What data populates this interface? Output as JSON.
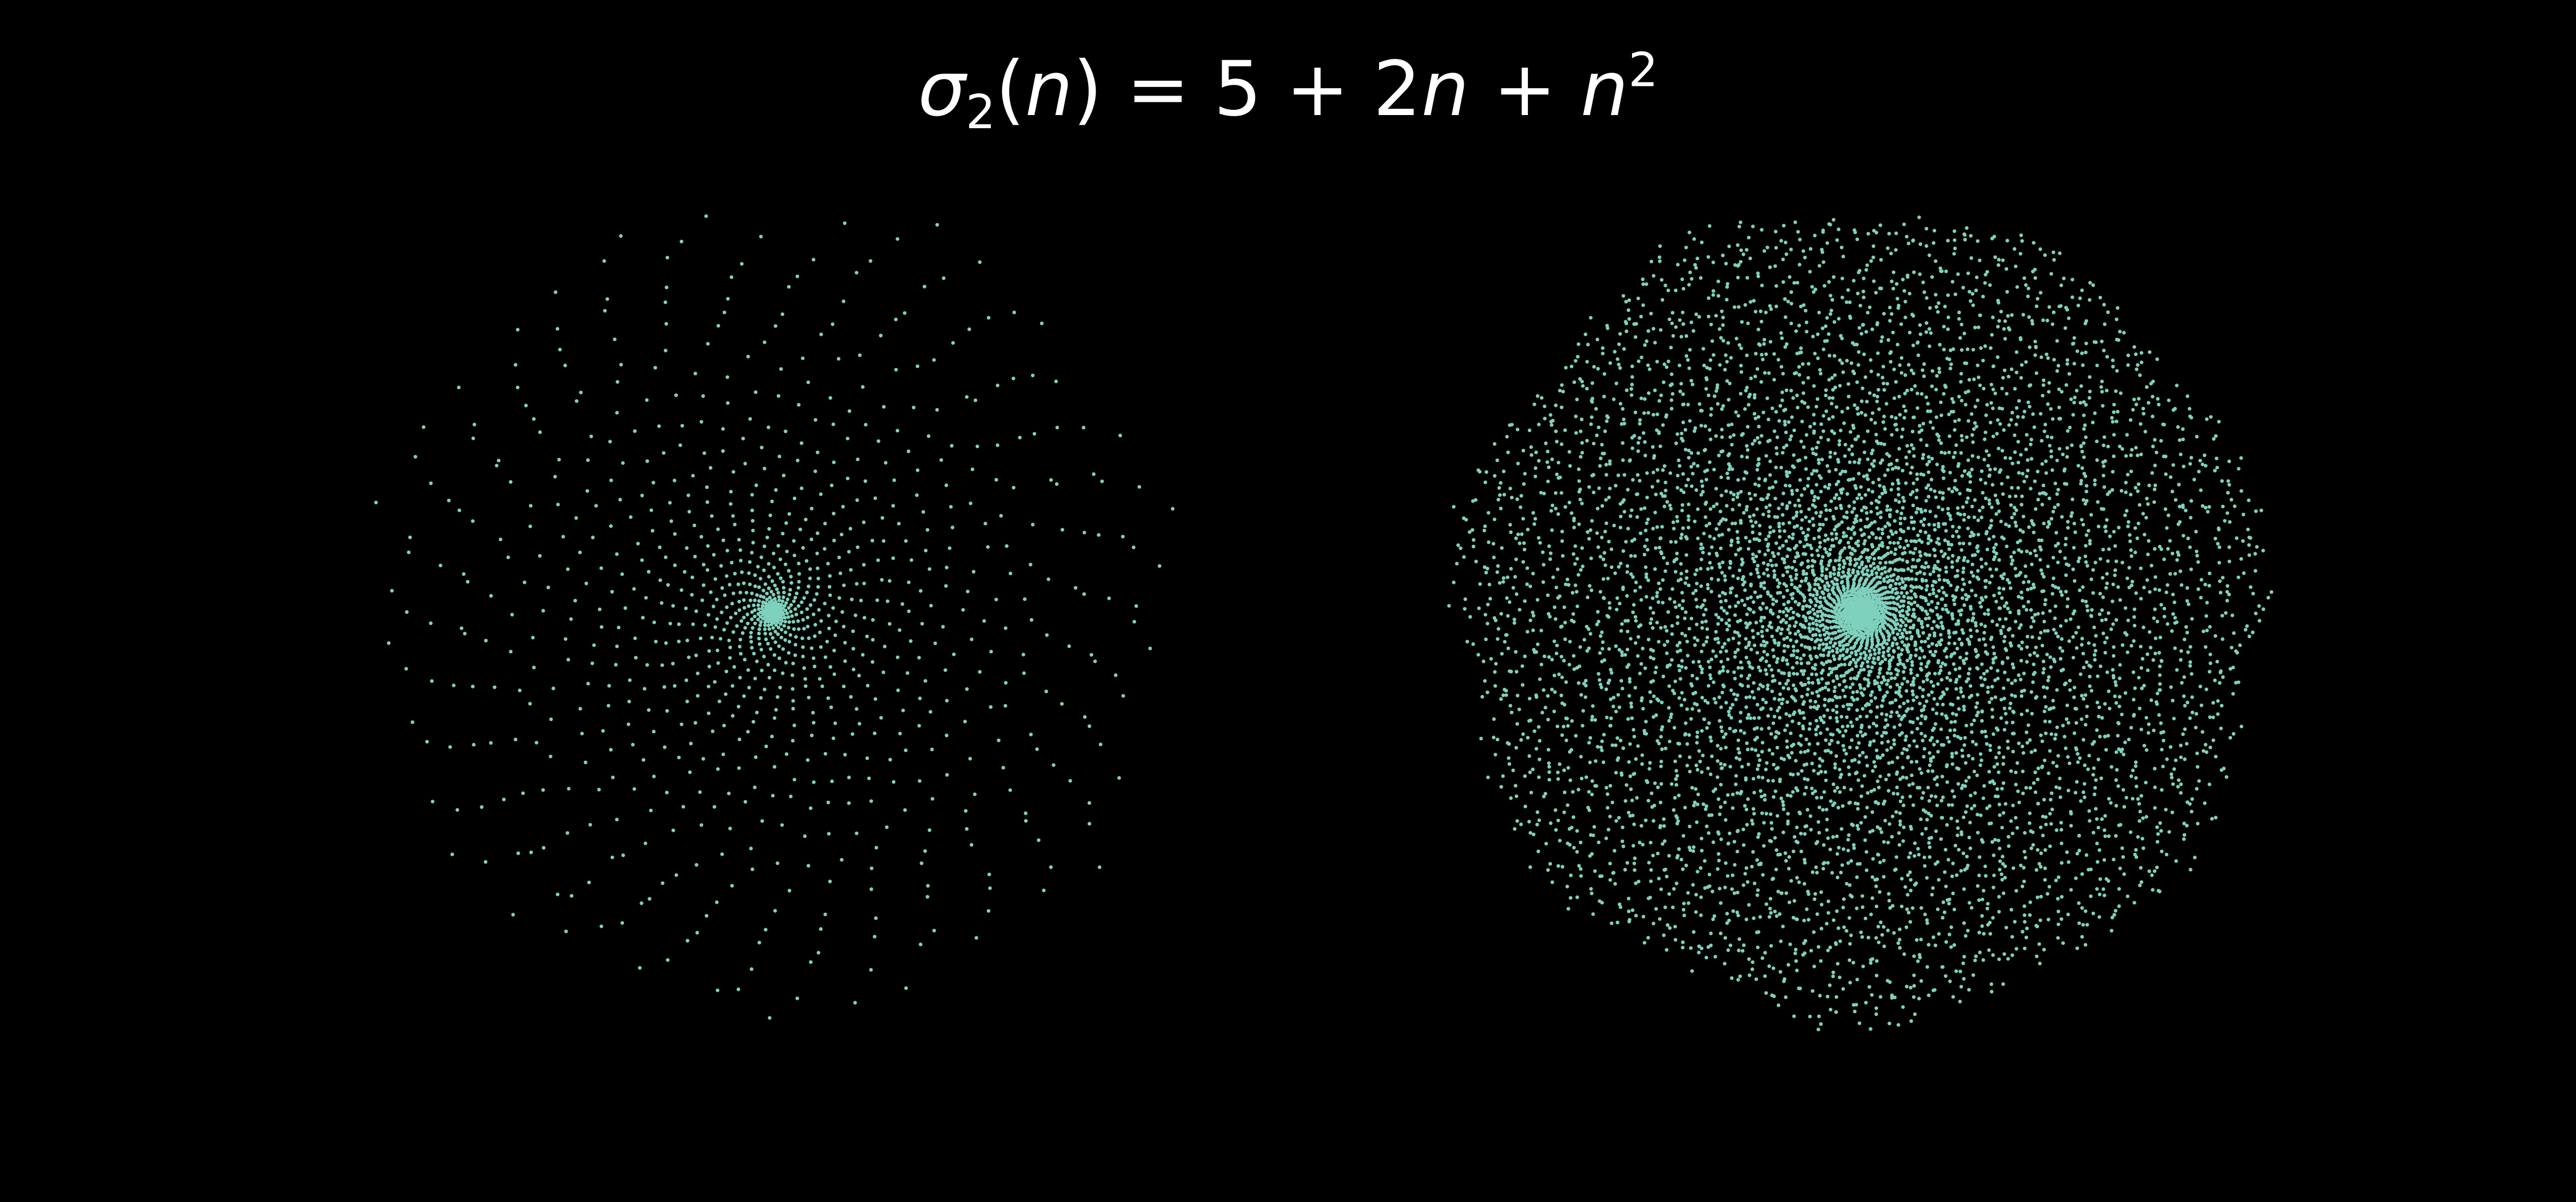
{
  "title": {
    "func": "σ",
    "sub": "2",
    "arg": "n",
    "rhs_const": "5",
    "rhs_coef": "2",
    "rhs_var": "n",
    "rhs_sq_var": "n",
    "rhs_exp": "2"
  },
  "colors": {
    "background": "#000000",
    "points": "#7fd1bd",
    "title": "#ffffff"
  },
  "chart_data": [
    {
      "type": "scatter",
      "grid": false,
      "axes_visible": false,
      "aspect": "equal",
      "xlim": [
        -1.05,
        1.05
      ],
      "ylim": [
        -1.05,
        1.05
      ],
      "distribution": "polar spiral around origin",
      "point_count": 1100,
      "center_density": "dense cluster at center, sparse toward rim",
      "radius_exponent": 1.7
    },
    {
      "type": "scatter",
      "grid": false,
      "axes_visible": false,
      "aspect": "equal",
      "xlim": [
        -1.05,
        1.05
      ],
      "ylim": [
        -1.05,
        1.05
      ],
      "distribution": "polar spiral around origin",
      "point_count": 7000,
      "center_density": "dense cluster at center, dense throughout disk",
      "radius_exponent": 0.95
    }
  ]
}
